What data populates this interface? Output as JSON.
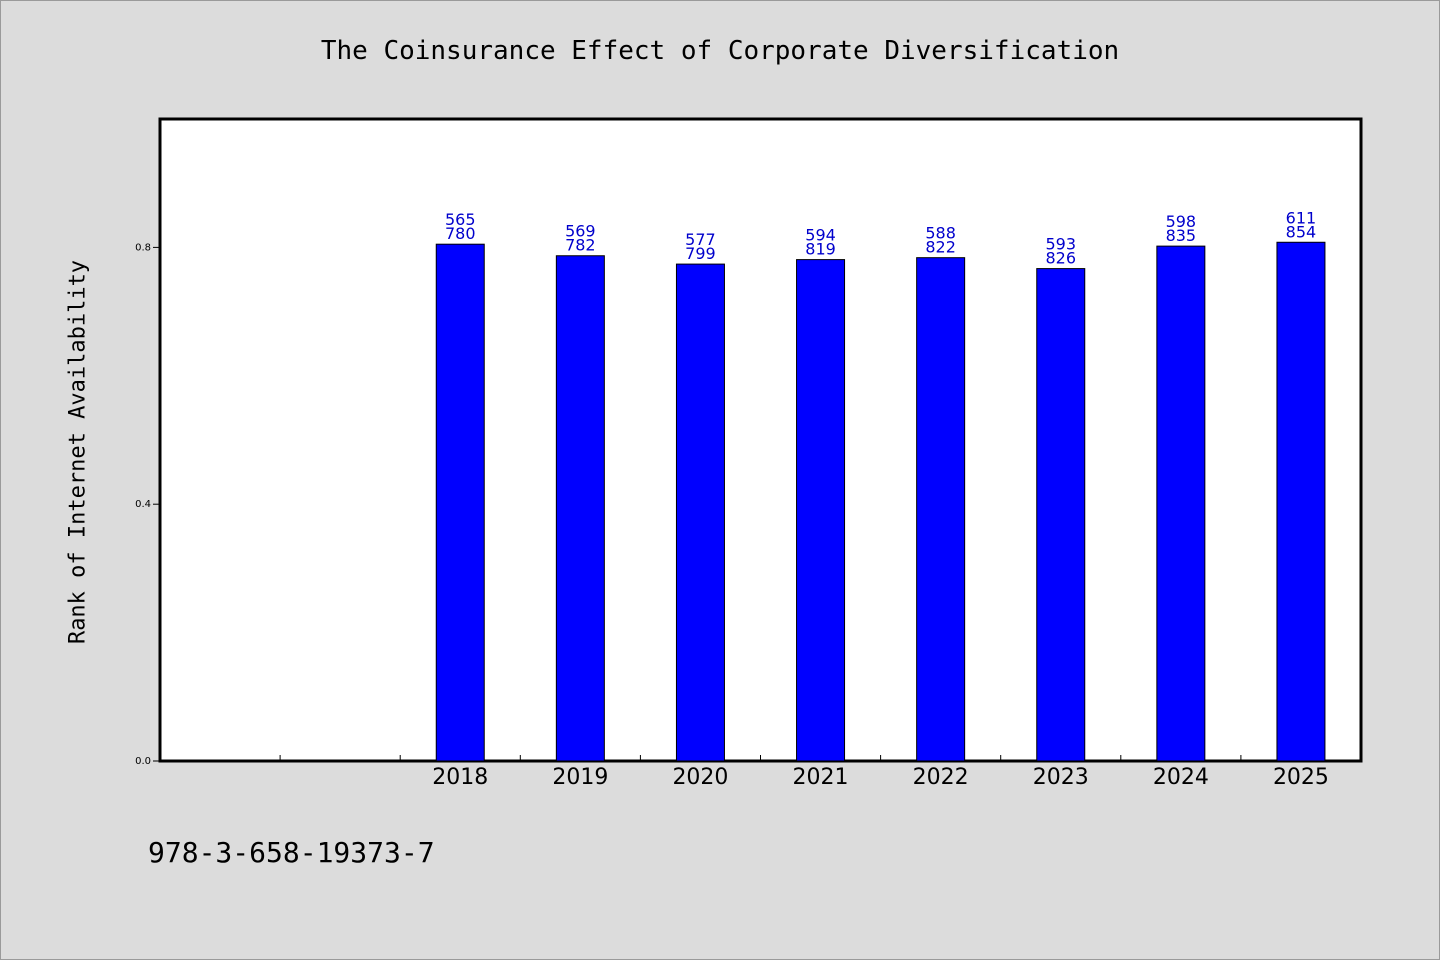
{
  "chart_data": {
    "type": "bar",
    "title": "The Coinsurance Effect of Corporate Diversification",
    "xlabel": "",
    "ylabel": "Rank of Internet Availability",
    "categories": [
      "",
      "",
      "2018",
      "2019",
      "2020",
      "2021",
      "2022",
      "2023",
      "2024",
      "2025"
    ],
    "values": [
      null,
      null,
      0.805,
      0.787,
      0.774,
      0.781,
      0.784,
      0.767,
      0.802,
      0.808
    ],
    "data_labels_top": [
      "",
      "",
      "565",
      "569",
      "577",
      "594",
      "588",
      "593",
      "598",
      "611"
    ],
    "data_labels_bottom": [
      "",
      "",
      "780",
      "782",
      "799",
      "819",
      "822",
      "826",
      "835",
      "854"
    ],
    "ylim": [
      0,
      1.0
    ],
    "yticks": [
      0.0,
      0.4,
      0.8
    ],
    "ytick_labels": [
      "0.0",
      "0.4",
      "0.8"
    ],
    "grid": false,
    "legend": "none",
    "bar_color": "#0000ff",
    "label_color": "#0000cc",
    "plot_bg": "#ffffff",
    "figure_bg": "#dcdcdc"
  },
  "footer": {
    "code": "978-3-658-19373-7"
  }
}
